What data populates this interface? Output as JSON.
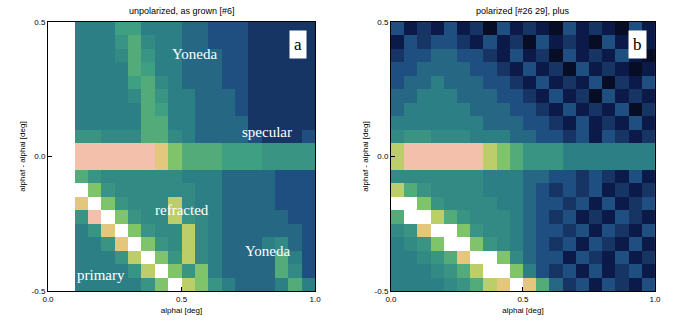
{
  "chart_data": [
    {
      "type": "heatmap",
      "title": "unpolarized, as grown [#6]",
      "panel": "a",
      "x_label": "alphai [deg]",
      "y_label": "alphaf - alphai [deg]",
      "xlim": [
        0,
        1
      ],
      "ylim": [
        -0.5,
        0.5
      ],
      "zlim": [
        0,
        10
      ],
      "xticks": [
        {
          "value": 0,
          "label": "0.0"
        },
        0.5,
        {
          "value": 1,
          "label": "1.0"
        }
      ],
      "yticks": [
        -0.5,
        {
          "value": 0,
          "label": "0.0"
        },
        0.5
      ],
      "x": [
        0.025,
        0.075,
        0.125,
        0.175,
        0.225,
        0.275,
        0.325,
        0.375,
        0.425,
        0.475,
        0.525,
        0.575,
        0.625,
        0.675,
        0.725,
        0.775,
        0.825,
        0.875,
        0.925,
        0.975
      ],
      "y": [
        -0.475,
        -0.425,
        -0.375,
        -0.325,
        -0.275,
        -0.225,
        -0.175,
        -0.125,
        -0.075,
        -0.025,
        0.025,
        0.075,
        0.125,
        0.175,
        0.225,
        0.275,
        0.325,
        0.375,
        0.425,
        0.475
      ],
      "cells": [
        [
          null,
          null,
          3,
          3,
          3,
          3,
          3,
          4,
          6,
          10,
          7,
          6,
          4,
          3,
          2.5,
          2.5,
          2.5,
          3,
          5,
          3
        ],
        [
          null,
          null,
          3,
          3,
          3,
          3,
          4,
          7,
          10,
          6,
          4,
          6,
          3,
          2.5,
          2.5,
          2.5,
          2.5,
          5,
          3.5,
          2
        ],
        [
          null,
          null,
          3,
          3,
          3,
          4,
          7,
          10,
          6,
          4,
          7,
          3.5,
          3,
          2.5,
          2.5,
          2.5,
          2.5,
          5,
          3,
          2
        ],
        [
          null,
          null,
          3,
          3,
          4,
          8,
          10,
          6,
          4,
          3.5,
          7,
          3.5,
          3,
          2.5,
          2.5,
          2.5,
          3,
          3.5,
          2.5,
          2
        ],
        [
          null,
          null,
          3,
          4,
          8,
          10,
          6,
          4,
          3.5,
          3.5,
          7,
          3.5,
          3,
          2.5,
          2.5,
          2.5,
          2.5,
          2.5,
          2.5,
          2
        ],
        [
          null,
          null,
          4,
          9,
          10,
          6,
          4,
          3.5,
          3.5,
          7,
          4,
          3.5,
          3,
          2.5,
          2.5,
          2.5,
          2.5,
          2.5,
          2,
          2
        ],
        [
          null,
          null,
          8,
          10,
          6,
          4,
          3.5,
          3.5,
          3.5,
          7,
          3.5,
          3,
          3,
          2.5,
          2.5,
          2.5,
          2.5,
          2,
          2,
          2
        ],
        [
          null,
          null,
          10,
          6,
          4,
          3.5,
          3.5,
          3.5,
          3.5,
          3.5,
          3.5,
          3,
          3,
          2.5,
          2.5,
          2.5,
          2.5,
          2,
          2,
          2
        ],
        [
          null,
          null,
          5,
          4,
          3.5,
          3.5,
          3.5,
          3.5,
          3.5,
          3.5,
          3,
          3,
          3,
          2.5,
          2.5,
          2.5,
          2.5,
          2,
          2,
          2
        ],
        [
          null,
          null,
          9,
          9,
          9,
          9,
          9,
          9,
          8,
          6,
          5,
          5,
          5,
          4.5,
          4.5,
          4.5,
          4,
          4,
          4,
          4
        ],
        [
          null,
          null,
          9,
          9,
          9,
          9,
          9,
          9,
          8,
          6,
          5,
          5,
          5,
          4.5,
          4.5,
          4.5,
          4,
          4,
          4,
          4
        ],
        [
          null,
          null,
          4,
          4,
          3.5,
          3.5,
          3.5,
          5,
          5,
          3.5,
          3,
          2.5,
          2.5,
          2.5,
          2.5,
          2,
          1.5,
          1.5,
          1.5,
          2
        ],
        [
          null,
          null,
          3,
          3,
          3,
          3,
          3,
          5,
          5,
          3,
          3,
          2.5,
          2.5,
          2.5,
          2.5,
          1.5,
          1.5,
          1.5,
          1.5,
          1.5
        ],
        [
          null,
          null,
          3,
          3,
          3,
          3,
          3,
          5,
          4.5,
          3,
          3,
          2.5,
          2.5,
          2.5,
          2,
          1.5,
          1.5,
          1.5,
          1.5,
          1.5
        ],
        [
          null,
          null,
          3,
          3,
          3,
          3,
          3.5,
          5,
          4,
          3,
          3,
          2.5,
          2.5,
          2.5,
          2,
          1.5,
          1.5,
          1.5,
          1.5,
          1.5
        ],
        [
          null,
          null,
          3,
          3,
          3,
          3,
          4.5,
          5,
          3.5,
          3,
          2.5,
          2.5,
          2.5,
          2,
          2,
          1.5,
          1.5,
          1.5,
          1.5,
          1.5
        ],
        [
          null,
          null,
          3,
          3,
          3,
          3,
          5,
          4.5,
          3,
          3,
          2.5,
          2.5,
          2.5,
          2,
          2,
          1.5,
          1.5,
          1.5,
          1.5,
          1.5
        ],
        [
          null,
          null,
          3,
          3,
          3,
          3.5,
          5,
          4,
          3,
          3,
          2.5,
          2.5,
          2.5,
          2,
          2,
          1.5,
          1.5,
          1.5,
          1.5,
          1.5
        ],
        [
          null,
          null,
          3,
          3,
          3,
          4,
          5,
          3.5,
          3,
          3,
          2.5,
          2.5,
          2,
          2,
          2,
          1.5,
          1.5,
          1.5,
          1.5,
          1.5
        ],
        [
          null,
          null,
          3,
          3,
          3,
          4.5,
          4.5,
          3,
          3,
          3,
          2.5,
          2.5,
          2,
          2,
          2,
          1.5,
          1.5,
          1.5,
          1.5,
          1.5
        ]
      ],
      "annotations": [
        {
          "text": "Yoneda",
          "x": 0.55,
          "y": 0.38
        },
        {
          "text": "specular",
          "x": 0.82,
          "y": 0.09
        },
        {
          "text": "refracted",
          "x": 0.5,
          "y": -0.2
        },
        {
          "text": "primary",
          "x": 0.2,
          "y": -0.44
        },
        {
          "text": "Yoneda",
          "x": 0.82,
          "y": -0.35
        }
      ]
    },
    {
      "type": "heatmap",
      "title": "polarized [#26 29], plus",
      "panel": "b",
      "x_label": "alphai [deg]",
      "y_label": "alphaf - alphai [deg]",
      "xlim": [
        0,
        1
      ],
      "ylim": [
        -0.5,
        0.5
      ],
      "zlim": [
        0,
        10
      ],
      "xticks": [
        {
          "value": 0,
          "label": "0.0"
        },
        0.5,
        {
          "value": 1,
          "label": "1.0"
        }
      ],
      "yticks": [
        -0.5,
        {
          "value": 0,
          "label": "0.0"
        },
        0.5
      ],
      "x": [
        0.025,
        0.075,
        0.125,
        0.175,
        0.225,
        0.275,
        0.325,
        0.375,
        0.425,
        0.475,
        0.525,
        0.575,
        0.625,
        0.675,
        0.725,
        0.775,
        0.825,
        0.875,
        0.925,
        0.975
      ],
      "y": [
        -0.475,
        -0.425,
        -0.375,
        -0.325,
        -0.275,
        -0.225,
        -0.175,
        -0.125,
        -0.075,
        -0.025,
        0.025,
        0.075,
        0.125,
        0.175,
        0.225,
        0.275,
        0.325,
        0.375,
        0.425,
        0.475
      ],
      "cells": [
        [
          3,
          3,
          3,
          3,
          3.5,
          4,
          5,
          7,
          8,
          10,
          8,
          5,
          2.5,
          1.5,
          2,
          1,
          2,
          1.5,
          1,
          2
        ],
        [
          3,
          3,
          3,
          3.5,
          4,
          5,
          7,
          10,
          10,
          6,
          3,
          2,
          1.5,
          2,
          1,
          2,
          1,
          1.5,
          2,
          1
        ],
        [
          3,
          3,
          3.5,
          4,
          5,
          8,
          10,
          10,
          6,
          3.5,
          2.5,
          2,
          2,
          1,
          2,
          1.5,
          1,
          2,
          1,
          1.5
        ],
        [
          3,
          3.5,
          4,
          6,
          10,
          10,
          6,
          4,
          3.5,
          3,
          2.5,
          2,
          1.5,
          2,
          1,
          2,
          1.5,
          1,
          2,
          1
        ],
        [
          3.5,
          4,
          8,
          10,
          10,
          6,
          4,
          3.5,
          3.5,
          3,
          2.5,
          2,
          2,
          1.5,
          2,
          1,
          2,
          1.5,
          1,
          2
        ],
        [
          5,
          10,
          10,
          7,
          5,
          4,
          3.5,
          3.5,
          3.5,
          3,
          2.5,
          2,
          1.5,
          2,
          1,
          1.5,
          1,
          2,
          1.5,
          1
        ],
        [
          10,
          10,
          6,
          4,
          3.5,
          3.5,
          3.5,
          3.5,
          3,
          3,
          2.5,
          2,
          2,
          1.5,
          2,
          1,
          2,
          1,
          1.5,
          2
        ],
        [
          7,
          5,
          4,
          3.5,
          3.5,
          3.5,
          3.5,
          3,
          3,
          3,
          2.5,
          2,
          1.5,
          2,
          1.5,
          2,
          1,
          1.5,
          1,
          1.5
        ],
        [
          3.5,
          3.5,
          3.5,
          3.5,
          3.5,
          3.5,
          3.5,
          3,
          3,
          3,
          2.5,
          2.5,
          2,
          2,
          1.5,
          2,
          1.5,
          1,
          2,
          1
        ],
        [
          7,
          9,
          9,
          9,
          9,
          9,
          9,
          7,
          6,
          5,
          4,
          4,
          4,
          3,
          3,
          3,
          3,
          3,
          3,
          3
        ],
        [
          7,
          9,
          9,
          9,
          9,
          9,
          9,
          7,
          6,
          5,
          4,
          4,
          4,
          3,
          3,
          3,
          3,
          3,
          3,
          3
        ],
        [
          3.5,
          4,
          4,
          3.5,
          3.5,
          3.5,
          3,
          3,
          3,
          2.5,
          2.5,
          2,
          2,
          1.5,
          2,
          1,
          2,
          1.5,
          1,
          1.5
        ],
        [
          3,
          3,
          3,
          3,
          3,
          3,
          3,
          2.5,
          2.5,
          2.5,
          2,
          2,
          1.5,
          1,
          2,
          1,
          1.5,
          1,
          2,
          1
        ],
        [
          2.5,
          3,
          3,
          3,
          3,
          3,
          2.5,
          2.5,
          2.5,
          2,
          2,
          1.5,
          1,
          2,
          1,
          1.5,
          1,
          2,
          0.5,
          1.5
        ],
        [
          2.5,
          2.5,
          3,
          3,
          3,
          2.5,
          2.5,
          2.5,
          2,
          2,
          1.5,
          1,
          2,
          1,
          1.5,
          0.5,
          2,
          1,
          1.5,
          1
        ],
        [
          2,
          2.5,
          2.5,
          3,
          2.5,
          2.5,
          2.5,
          2,
          2,
          1.5,
          1,
          2,
          1,
          1.5,
          1,
          2,
          0.5,
          1.5,
          1,
          2
        ],
        [
          2,
          2,
          2.5,
          2.5,
          2.5,
          2.5,
          2,
          2,
          1.5,
          1,
          2,
          1,
          1.5,
          0.5,
          2,
          1,
          1.5,
          1,
          0.5,
          1
        ],
        [
          1.5,
          2,
          2,
          2.5,
          2.5,
          2,
          2,
          1.5,
          1,
          2,
          1,
          1.5,
          0.5,
          2,
          1,
          1.5,
          1,
          2,
          1,
          0.5
        ],
        [
          1,
          2,
          1.5,
          2,
          2,
          1.5,
          1,
          2,
          1,
          1.5,
          0.5,
          2,
          1,
          1.5,
          1,
          0.5,
          2,
          1,
          1.5,
          1
        ],
        [
          2,
          1,
          1.5,
          1,
          2,
          1,
          1.5,
          0.5,
          2,
          1,
          1.5,
          1,
          0.5,
          2,
          1,
          1.5,
          1,
          0.5,
          2,
          1
        ]
      ],
      "annotations": []
    }
  ]
}
